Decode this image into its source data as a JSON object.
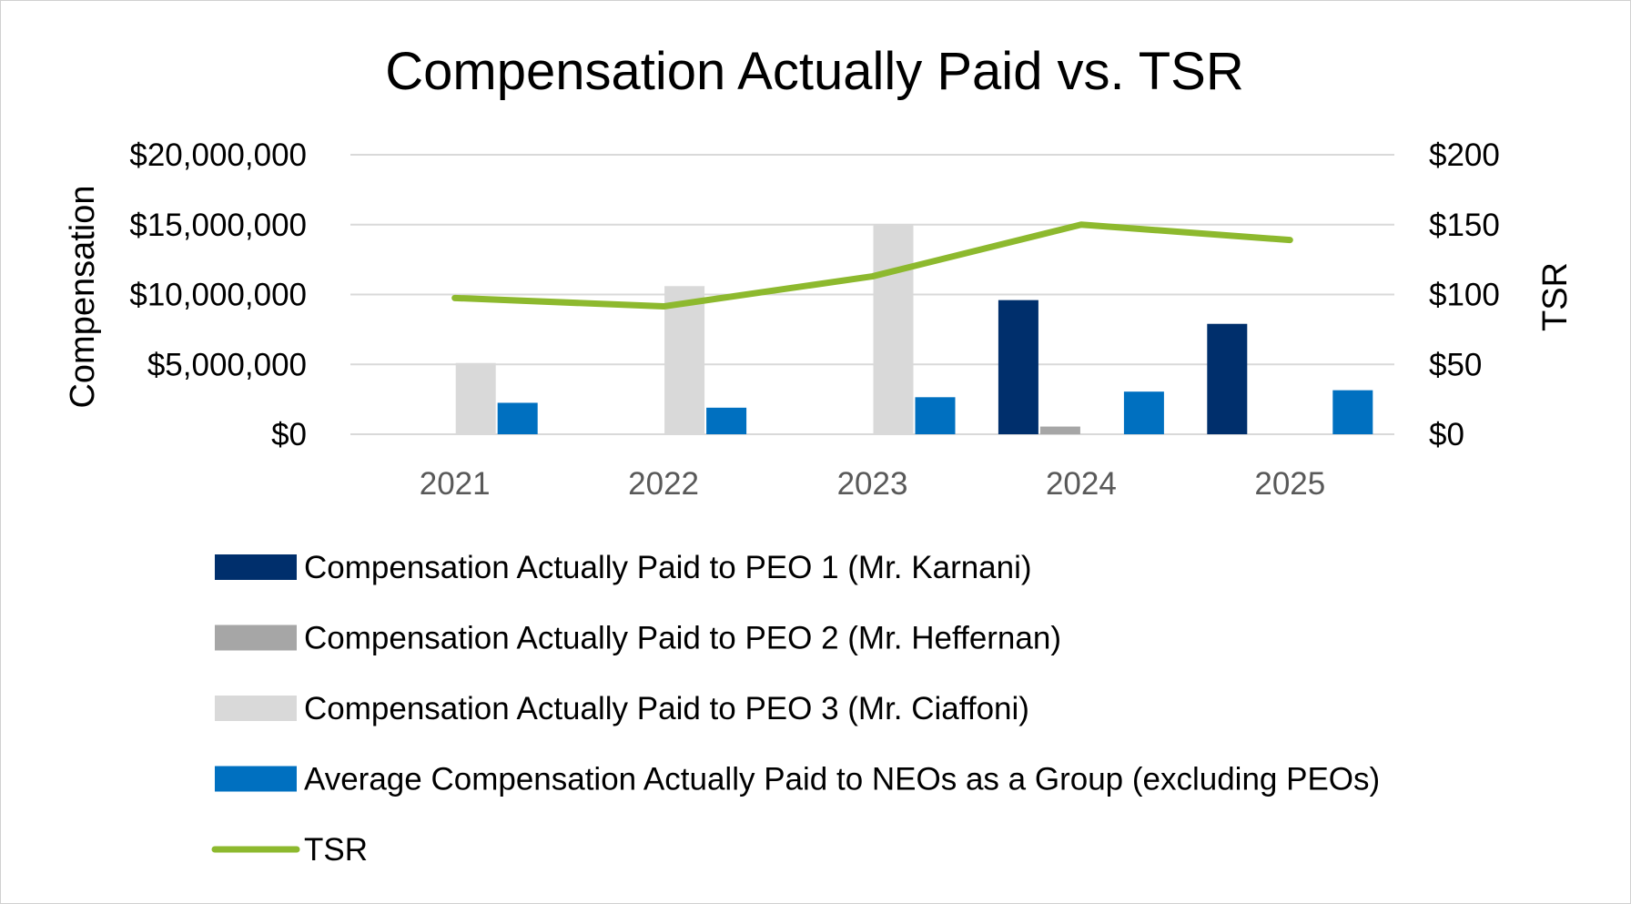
{
  "chart_data": {
    "type": "bar",
    "title": "Compensation Actually Paid vs. TSR",
    "ylabel": "Compensation",
    "y2label": "TSR",
    "categories": [
      "2021",
      "2022",
      "2023",
      "2024",
      "2025"
    ],
    "ylim": [
      0,
      20000000
    ],
    "y2lim": [
      0,
      200
    ],
    "yticks": [
      "$0",
      "$5,000,000",
      "$10,000,000",
      "$15,000,000",
      "$20,000,000"
    ],
    "y2ticks": [
      "$0",
      "$50",
      "$100",
      "$150",
      "$200"
    ],
    "grid": true,
    "legend_position": "bottom",
    "series": [
      {
        "name": "Compensation Actually Paid to PEO 1 (Mr. Karnani)",
        "type": "bar",
        "axis": "left",
        "color": "#002f6c",
        "values": [
          null,
          null,
          null,
          9600000,
          7900000
        ]
      },
      {
        "name": "Compensation Actually Paid to PEO 2 (Mr. Heffernan)",
        "type": "bar",
        "axis": "left",
        "color": "#a6a6a6",
        "values": [
          null,
          null,
          null,
          550000,
          null
        ]
      },
      {
        "name": "Compensation Actually Paid to PEO 3 (Mr. Ciaffoni)",
        "type": "bar",
        "axis": "left",
        "color": "#d9d9d9",
        "values": [
          5100000,
          10600000,
          15000000,
          null,
          null
        ]
      },
      {
        "name": "Average Compensation Actually Paid to NEOs as a Group (excluding PEOs)",
        "type": "bar",
        "axis": "left",
        "color": "#0070c0",
        "values": [
          2250000,
          1900000,
          2650000,
          3050000,
          3150000
        ]
      },
      {
        "name": "TSR",
        "type": "line",
        "axis": "right",
        "color": "#8db92e",
        "values": [
          97.5,
          91.5,
          113,
          150,
          139
        ]
      }
    ]
  }
}
